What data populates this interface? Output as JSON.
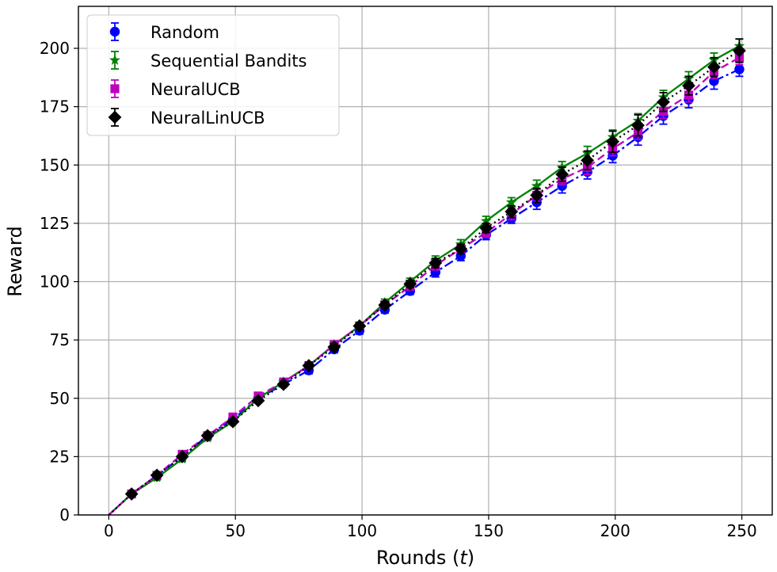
{
  "chart_data": {
    "type": "line",
    "xlabel": "Rounds (t)",
    "xlabel_text": "Rounds (",
    "xlabel_var": "t",
    "xlabel_close": ")",
    "ylabel": "Reward",
    "xlim": [
      -12,
      262
    ],
    "ylim": [
      0,
      218
    ],
    "xticks": [
      0,
      50,
      100,
      150,
      200,
      250
    ],
    "yticks": [
      0,
      25,
      50,
      75,
      100,
      125,
      150,
      175,
      200
    ],
    "grid": true,
    "legend_position": "top-left",
    "markers_x": [
      9,
      19,
      29,
      39,
      49,
      59,
      69,
      79,
      89,
      99,
      109,
      119,
      129,
      139,
      149,
      159,
      169,
      179,
      189,
      199,
      209,
      219,
      229,
      239,
      249
    ],
    "series": [
      {
        "name": "Random",
        "color": "#0000ff",
        "marker": "circle",
        "linestyle": "dashdot",
        "values": [
          9,
          17,
          25,
          34,
          41,
          50,
          56,
          62,
          71,
          79,
          88,
          96,
          104,
          111,
          120,
          127,
          134,
          141,
          147,
          154,
          162,
          171,
          178,
          186,
          191
        ],
        "errors": [
          1,
          1,
          1,
          1,
          1,
          1,
          1,
          1.5,
          1.5,
          1.5,
          1.5,
          1.5,
          2,
          2,
          2,
          2,
          3,
          3,
          3,
          3,
          3.5,
          3.5,
          3.5,
          3.5,
          3
        ]
      },
      {
        "name": "Sequential Bandits",
        "color": "#008000",
        "marker": "star",
        "linestyle": "solid",
        "values": [
          9,
          16,
          24,
          33,
          40,
          50,
          57,
          64,
          73,
          81,
          91,
          100,
          109,
          116,
          126,
          134,
          141,
          149,
          155,
          162,
          169,
          179,
          187,
          195,
          201
        ],
        "errors": [
          1,
          1,
          1,
          1,
          1,
          1,
          1,
          1.5,
          1.5,
          1.5,
          1.5,
          1.5,
          2,
          2,
          2,
          2,
          2.5,
          2.5,
          3,
          3,
          3,
          3,
          3,
          3,
          3
        ]
      },
      {
        "name": "NeuralUCB",
        "color": "#bf00bf",
        "marker": "square",
        "linestyle": "dashed",
        "values": [
          9,
          17,
          26,
          34,
          42,
          51,
          57,
          64,
          73,
          81,
          90,
          98,
          107,
          114,
          121,
          129,
          137,
          144,
          149,
          157,
          164,
          173,
          180,
          190,
          196
        ],
        "errors": [
          1,
          1,
          1,
          1,
          1,
          1,
          1,
          1.5,
          1.5,
          1.5,
          1.5,
          1.5,
          2,
          2,
          2,
          2.5,
          2.5,
          2.5,
          3,
          3,
          3,
          3,
          3,
          3,
          3
        ]
      },
      {
        "name": "NeuralLinUCB",
        "color": "#000000",
        "marker": "diamond",
        "linestyle": "dotted",
        "values": [
          9,
          17,
          25,
          34,
          40,
          49,
          56,
          64,
          72,
          81,
          90,
          99,
          108,
          114,
          123,
          130,
          137,
          146,
          152,
          160,
          167,
          177,
          184,
          192,
          199
        ],
        "errors": [
          1,
          1,
          1,
          1,
          1,
          1,
          1,
          1.5,
          1.5,
          1.5,
          1.5,
          1.5,
          2,
          2,
          2,
          2.5,
          3,
          3,
          4,
          4.5,
          4.5,
          4,
          4,
          4,
          5
        ]
      }
    ]
  }
}
